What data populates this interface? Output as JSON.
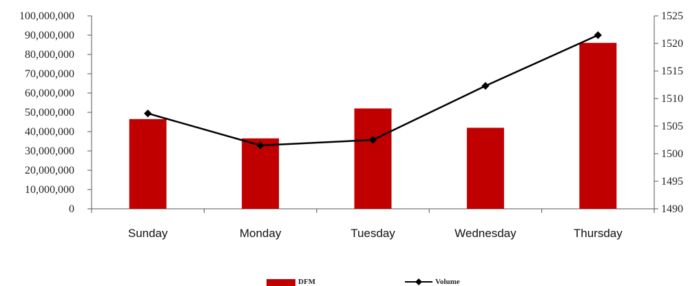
{
  "chart_data": {
    "type": "bar",
    "title": "",
    "categories": [
      "Sunday",
      "Monday",
      "Tuesday",
      "Wednesday",
      "Thursday"
    ],
    "series": [
      {
        "name": "DFM",
        "type": "bar",
        "axis": "left",
        "color": "#C00000",
        "values": [
          46500000,
          36500000,
          52000000,
          42000000,
          86000000
        ]
      },
      {
        "name": "Volume",
        "type": "line",
        "axis": "right",
        "color": "#000000",
        "marker": "diamond",
        "values": [
          1507.3,
          1501.5,
          1502.5,
          1512.3,
          1521.5
        ]
      }
    ],
    "y_left": {
      "ylim": [
        0,
        100000000
      ],
      "ticks": [
        "0",
        "10,000,000",
        "20,000,000",
        "30,000,000",
        "40,000,000",
        "50,000,000",
        "60,000,000",
        "70,000,000",
        "80,000,000",
        "90,000,000",
        "100,000,000"
      ]
    },
    "y_right": {
      "ylim": [
        1490,
        1525
      ],
      "ticks": [
        "1490",
        "1495",
        "1500",
        "1505",
        "1510",
        "1515",
        "1520",
        "1525"
      ]
    },
    "grid": false,
    "legend": "bottom-center"
  }
}
